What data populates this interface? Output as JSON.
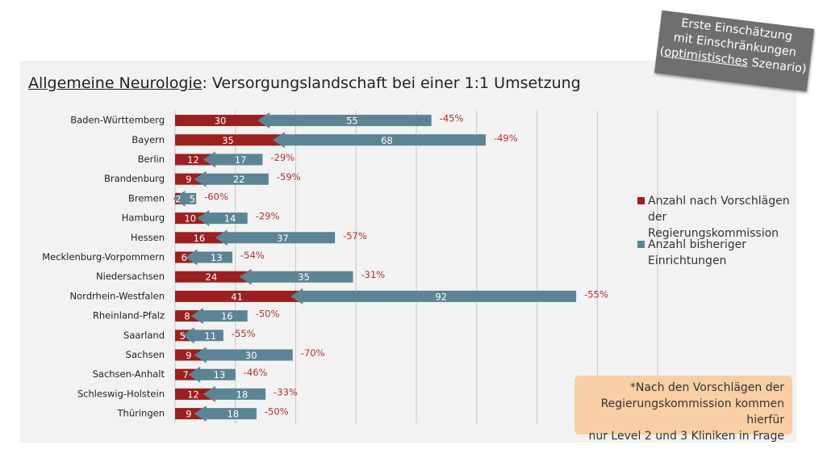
{
  "badge": {
    "line1": "Erste Einschätzung",
    "line2": "mit Einschränkungen",
    "line3_open": "(",
    "line3_underlined": "optimistisches",
    "line3_rest": " Szenario)"
  },
  "note": {
    "line1": "*Nach den Vorschlägen der",
    "line2": "Regierungskommission kommen hierfür",
    "line3": "nur Level 2 und 3 Kliniken in Frage"
  },
  "chart_data": {
    "type": "stacked-arrow-bar",
    "title_underlined": "Allgemeine Neurologie",
    "title_rest": ": Versorgungslandschaft bei einer 1:1 Umsetzung",
    "categories": [
      "Baden-Württemberg",
      "Bayern",
      "Berlin",
      "Brandenburg",
      "Bremen",
      "Hamburg",
      "Hessen",
      "Mecklenburg-Vorpommern",
      "Niedersachsen",
      "Nordrhein-Westfalen",
      "Rheinland-Pfalz",
      "Saarland",
      "Sachsen",
      "Sachsen-Anhalt",
      "Schleswig-Holstein",
      "Thüringen"
    ],
    "series": [
      {
        "name": "Anzahl nach Vorschlägen der Regierungskommission",
        "color": "#9b2020",
        "values": [
          30,
          35,
          12,
          9,
          2,
          10,
          16,
          6,
          24,
          41,
          8,
          5,
          9,
          7,
          12,
          9
        ]
      },
      {
        "name": "Anzahl bisheriger Einrichtungen",
        "color": "#5b8494",
        "values": [
          55,
          68,
          17,
          22,
          5,
          14,
          37,
          13,
          35,
          92,
          16,
          11,
          30,
          13,
          18,
          18
        ]
      }
    ],
    "changes": {
      "color": "#b03030",
      "values": [
        -45,
        -49,
        -29,
        -59,
        -60,
        -29,
        -57,
        -54,
        -31,
        -55,
        -50,
        -55,
        -70,
        -46,
        -33,
        -50
      ],
      "value_labels": [
        "-45%",
        "-49%",
        "-29%",
        "-59%",
        "-60%",
        "-29%",
        "-57%",
        "-54%",
        "-31%",
        "-55%",
        "-50%",
        "-55%",
        "-70%",
        "-46%",
        "-33%",
        "-50%"
      ]
    },
    "xlim": [
      0,
      160
    ],
    "xticks": [
      0,
      20,
      40,
      60,
      80,
      100,
      120,
      140,
      160
    ],
    "grid": true
  }
}
